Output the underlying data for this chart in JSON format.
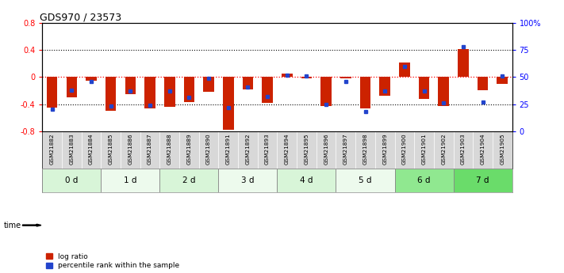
{
  "title": "GDS970 / 23573",
  "samples": [
    "GSM21882",
    "GSM21883",
    "GSM21884",
    "GSM21885",
    "GSM21886",
    "GSM21887",
    "GSM21888",
    "GSM21889",
    "GSM21890",
    "GSM21891",
    "GSM21892",
    "GSM21893",
    "GSM21894",
    "GSM21895",
    "GSM21896",
    "GSM21897",
    "GSM21898",
    "GSM21899",
    "GSM21900",
    "GSM21901",
    "GSM21902",
    "GSM21903",
    "GSM21904",
    "GSM21905"
  ],
  "log_ratio": [
    -0.45,
    -0.3,
    -0.05,
    -0.5,
    -0.25,
    -0.46,
    -0.44,
    -0.37,
    -0.22,
    -0.78,
    -0.18,
    -0.38,
    0.05,
    -0.02,
    -0.43,
    -0.02,
    -0.47,
    -0.28,
    0.22,
    -0.32,
    -0.43,
    0.42,
    -0.2,
    -0.1
  ],
  "percentile_rank": [
    20,
    38,
    46,
    23,
    37,
    24,
    37,
    31,
    49,
    22,
    41,
    32,
    52,
    51,
    25,
    46,
    18,
    37,
    60,
    37,
    26,
    78,
    27,
    51
  ],
  "time_groups": [
    {
      "label": "0 d",
      "start": 0,
      "end": 3,
      "color": "#d8f5d8"
    },
    {
      "label": "1 d",
      "start": 3,
      "end": 6,
      "color": "#edfaed"
    },
    {
      "label": "2 d",
      "start": 6,
      "end": 9,
      "color": "#d8f5d8"
    },
    {
      "label": "3 d",
      "start": 9,
      "end": 12,
      "color": "#edfaed"
    },
    {
      "label": "4 d",
      "start": 12,
      "end": 15,
      "color": "#d8f5d8"
    },
    {
      "label": "5 d",
      "start": 15,
      "end": 18,
      "color": "#edfaed"
    },
    {
      "label": "6 d",
      "start": 18,
      "end": 21,
      "color": "#90e890"
    },
    {
      "label": "7 d",
      "start": 21,
      "end": 24,
      "color": "#6adc6a"
    }
  ],
  "ylim_left": [
    -0.8,
    0.8
  ],
  "ylim_right": [
    0,
    100
  ],
  "yticks_left": [
    -0.8,
    -0.4,
    0.0,
    0.4,
    0.8
  ],
  "yticks_right": [
    0,
    25,
    50,
    75,
    100
  ],
  "ytick_labels_right": [
    "0",
    "25",
    "50",
    "75",
    "100%"
  ],
  "bar_color_red": "#cc2200",
  "bar_color_blue": "#2244cc",
  "background_color": "#ffffff",
  "sample_bg_color": "#d8d8d8",
  "time_label_color": "#000000"
}
